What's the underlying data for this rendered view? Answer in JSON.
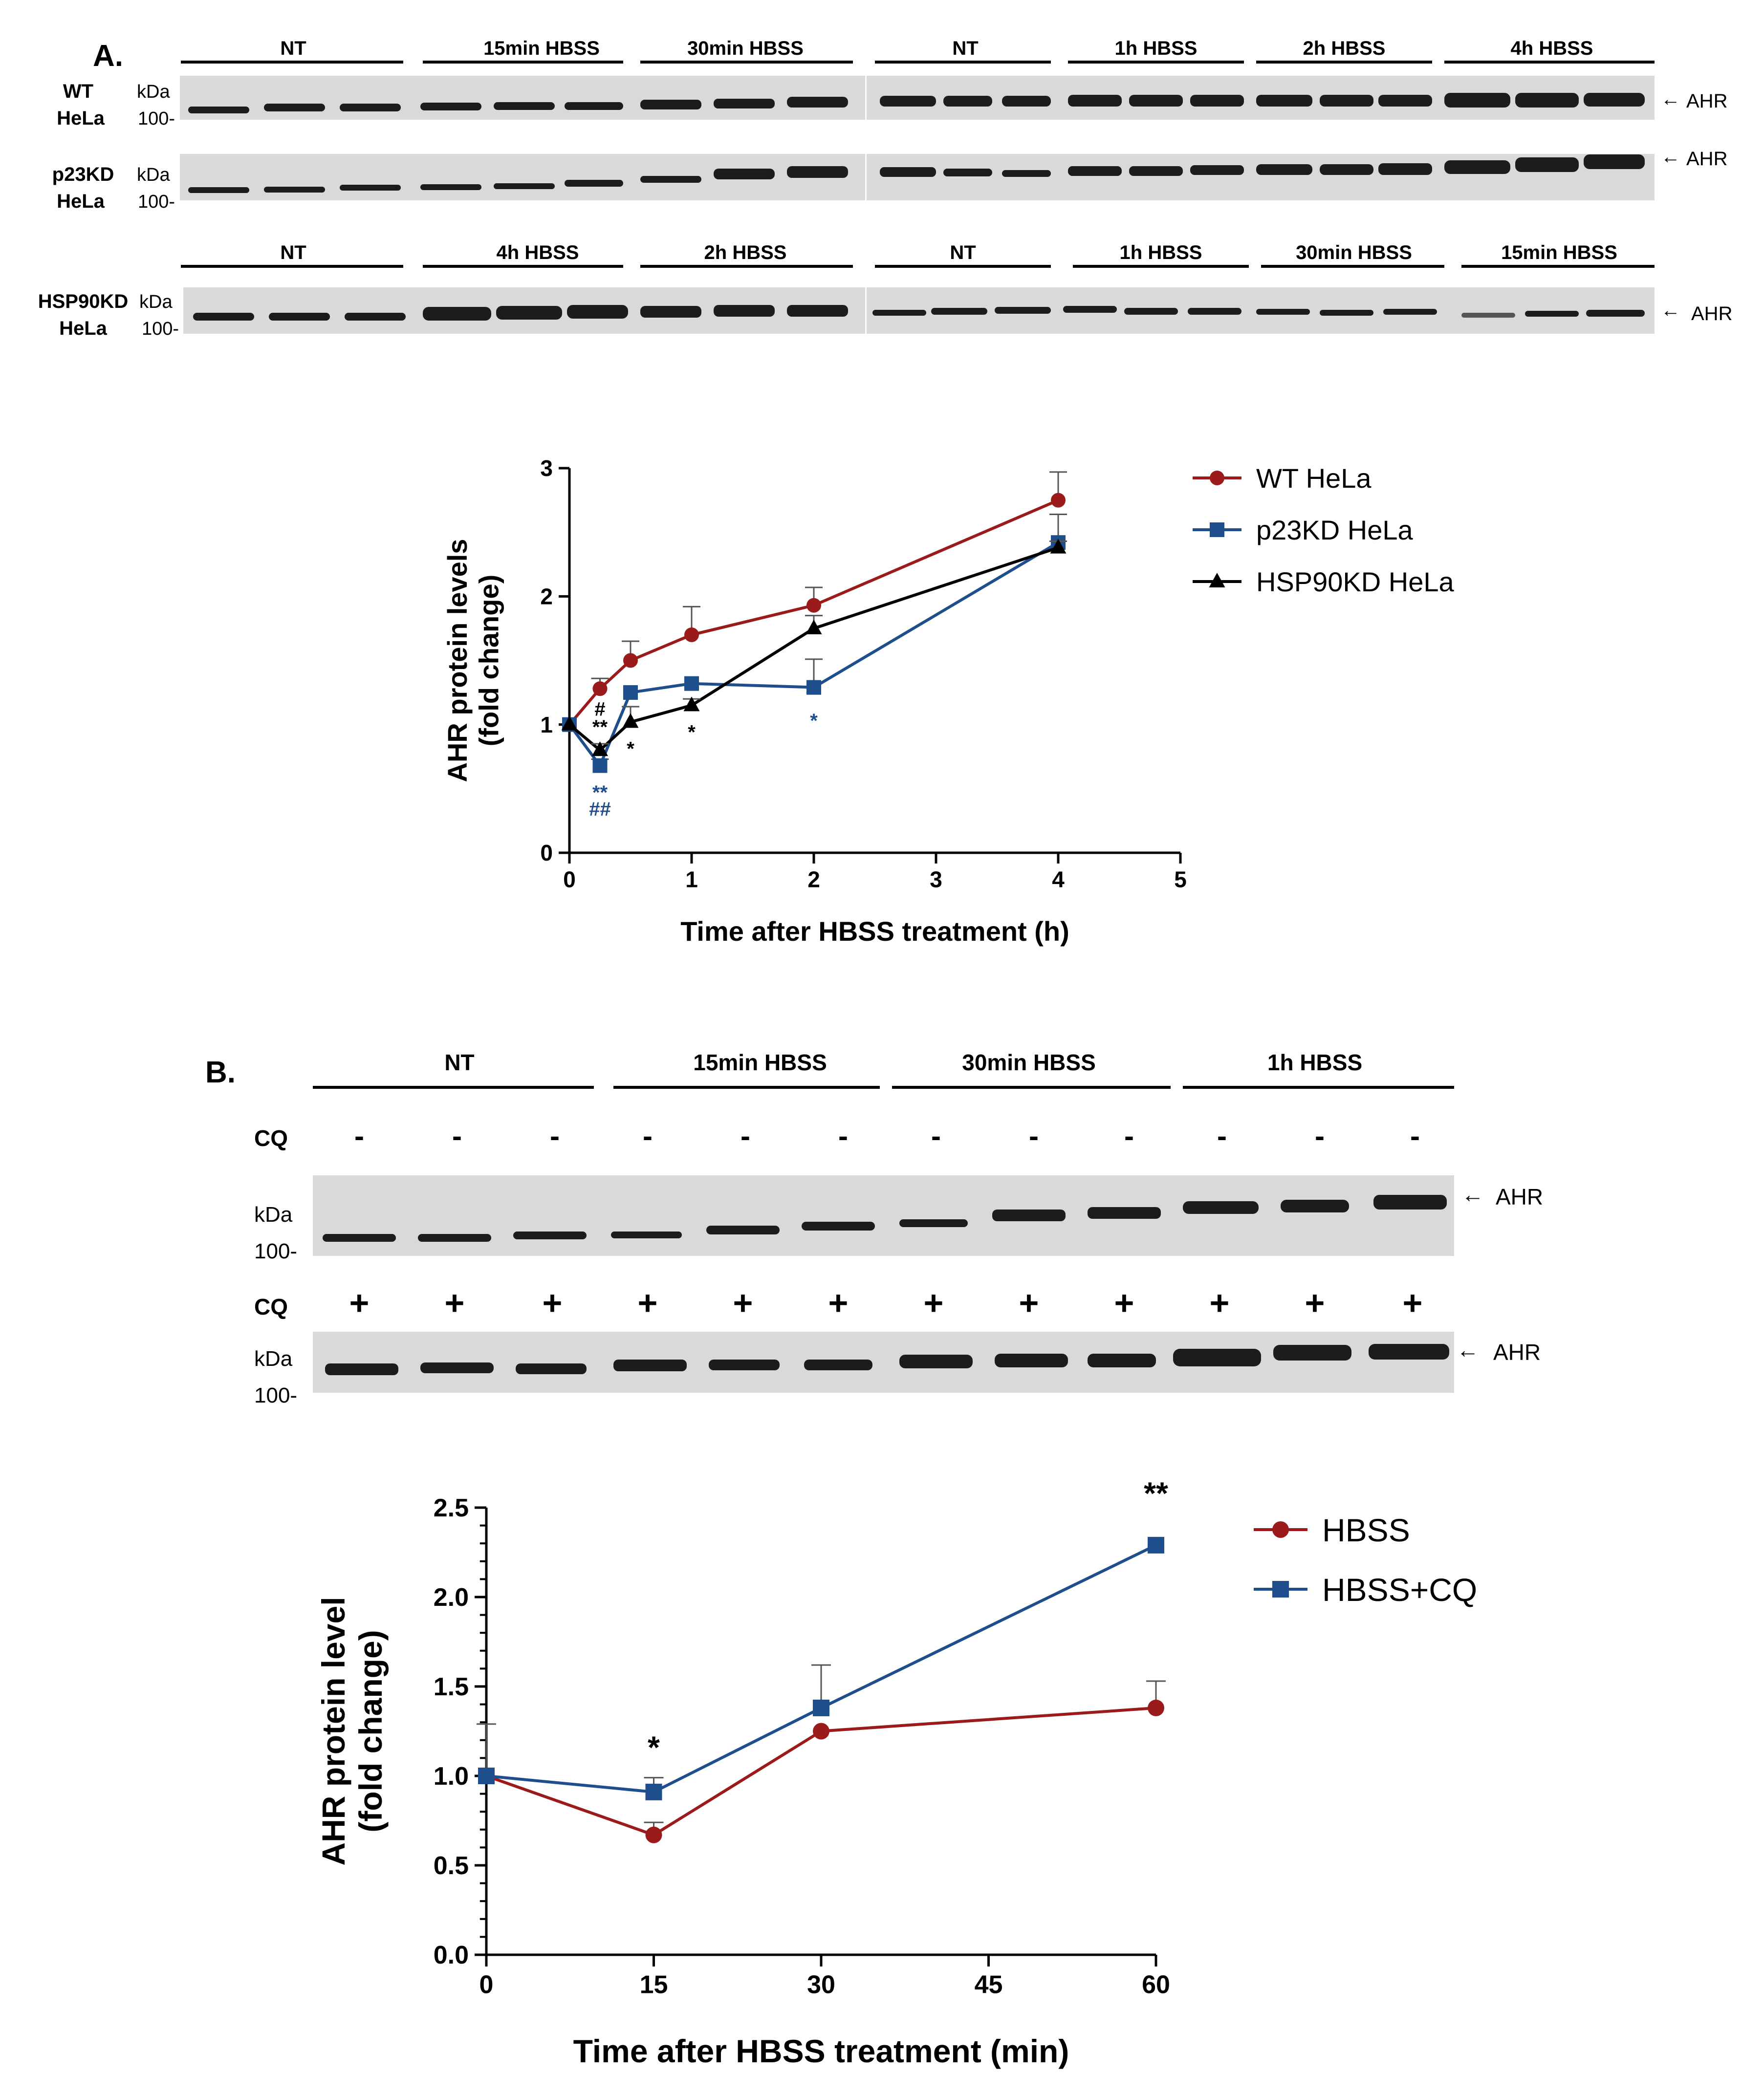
{
  "panelA": {
    "label": "A.",
    "row1": {
      "groups": [
        "NT",
        "15min HBSS",
        "30min HBSS",
        "NT",
        "1h HBSS",
        "2h HBSS",
        "4h HBSS"
      ],
      "blots": [
        {
          "name": [
            "WT",
            "HeLa"
          ],
          "kda": "kDa",
          "marker": "100-",
          "band": "AHR"
        },
        {
          "name": [
            "p23KD",
            "HeLa"
          ],
          "kda": "kDa",
          "marker": "100-",
          "band": "AHR"
        }
      ]
    },
    "row2": {
      "groups": [
        "NT",
        "4h HBSS",
        "2h HBSS",
        "NT",
        "1h HBSS",
        "30min HBSS",
        "15min HBSS"
      ],
      "blots": [
        {
          "name": [
            "HSP90KD",
            "HeLa"
          ],
          "kda": "kDa",
          "marker": "100-",
          "band": "AHR"
        }
      ]
    }
  },
  "panelB": {
    "label": "B.",
    "groups": [
      "NT",
      "15min HBSS",
      "30min HBSS",
      "1h HBSS"
    ],
    "cq_label": "CQ",
    "cq_minus": "-",
    "cq_plus": "+",
    "kda": "kDa",
    "marker": "100-",
    "band": "AHR"
  },
  "chart_data": [
    {
      "type": "line",
      "title": "",
      "xlabel": "Time after HBSS treatment (h)",
      "ylabel": [
        "AHR protein levels",
        "(fold change)"
      ],
      "xlim": [
        0,
        5
      ],
      "ylim": [
        0,
        3
      ],
      "xticks": [
        "0",
        "1",
        "2",
        "3",
        "4",
        "5"
      ],
      "yticks": [
        "0",
        "1",
        "2",
        "3"
      ],
      "legend_position": "right",
      "series": [
        {
          "name": "WT HeLa",
          "color": "#9B1B1B",
          "marker": "circle",
          "x": [
            0,
            0.25,
            0.5,
            1,
            2,
            4
          ],
          "y": [
            1.0,
            1.28,
            1.5,
            1.7,
            1.93,
            2.75
          ],
          "err": [
            0,
            0.08,
            0.15,
            0.22,
            0.14,
            0.22
          ]
        },
        {
          "name": "p23KD HeLa",
          "color": "#1F4E8C",
          "marker": "square",
          "x": [
            0,
            0.25,
            0.5,
            1,
            2,
            4
          ],
          "y": [
            1.0,
            0.68,
            1.25,
            1.32,
            1.29,
            2.42
          ],
          "err": [
            0,
            0.05,
            0.0,
            0.0,
            0.22,
            0.22
          ]
        },
        {
          "name": "HSP90KD HeLa",
          "color": "#000000",
          "marker": "triangle",
          "x": [
            0,
            0.25,
            0.5,
            1,
            2,
            4
          ],
          "y": [
            1.0,
            0.8,
            1.02,
            1.15,
            1.75,
            2.38
          ],
          "err": [
            0,
            0.05,
            0.12,
            0.05,
            0.1,
            0.05
          ]
        }
      ],
      "annotations": [
        {
          "text": "#",
          "x": 0.25,
          "y": 1.07,
          "color": "#000000"
        },
        {
          "text": "**",
          "x": 0.25,
          "y": 0.93,
          "color": "#000000"
        },
        {
          "text": "*",
          "x": 0.5,
          "y": 0.76,
          "color": "#000000"
        },
        {
          "text": "*",
          "x": 1,
          "y": 0.89,
          "color": "#000000"
        },
        {
          "text": "*",
          "x": 2,
          "y": 0.98,
          "color": "#1F4E8C"
        },
        {
          "text": "**",
          "x": 0.25,
          "y": 0.42,
          "color": "#1F4E8C"
        },
        {
          "text": "##",
          "x": 0.25,
          "y": 0.29,
          "color": "#1F4E8C"
        }
      ]
    },
    {
      "type": "line",
      "title": "",
      "xlabel": "Time after HBSS treatment (min)",
      "ylabel": [
        "AHR protein level",
        "(fold change)"
      ],
      "xlim": [
        0,
        60
      ],
      "ylim": [
        0,
        2.5
      ],
      "xticks": [
        "0",
        "15",
        "30",
        "45",
        "60"
      ],
      "yticks": [
        "0.0",
        "0.5",
        "1.0",
        "1.5",
        "2.0",
        "2.5"
      ],
      "legend_position": "right",
      "series": [
        {
          "name": "HBSS",
          "color": "#9B1B1B",
          "marker": "circle",
          "x": [
            0,
            15,
            30,
            60
          ],
          "y": [
            1.0,
            0.67,
            1.25,
            1.38
          ],
          "err": [
            0.29,
            0.07,
            0.0,
            0.15
          ]
        },
        {
          "name": "HBSS+CQ",
          "color": "#1F4E8C",
          "marker": "square",
          "x": [
            0,
            15,
            30,
            60
          ],
          "y": [
            1.0,
            0.91,
            1.38,
            2.29
          ],
          "err": [
            0.0,
            0.08,
            0.24,
            0.0
          ]
        }
      ],
      "annotations": [
        {
          "text": "*",
          "x": 15,
          "y": 1.1,
          "color": "#000000"
        },
        {
          "text": "**",
          "x": 60,
          "y": 2.52,
          "color": "#000000"
        }
      ]
    }
  ]
}
